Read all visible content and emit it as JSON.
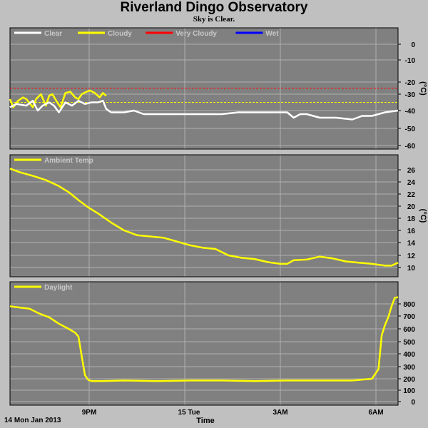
{
  "title": "Riverland Dingo Observatory",
  "subtitle": "Sky is Clear.",
  "date_label": "14 Mon Jan 2013",
  "xaxis_label": "Time",
  "colors": {
    "plot_bg": "#808080",
    "grid": "#b0b0b0",
    "clear": "#ffffff",
    "cloudy": "#ffff00",
    "very_cloudy": "#ff0000",
    "wet": "#0000ff",
    "data_line": "#ffff00"
  },
  "chart_data": [
    {
      "type": "line",
      "panel": "sky",
      "legend": [
        {
          "name": "Clear",
          "color": "#ffffff"
        },
        {
          "name": "Cloudy",
          "color": "#ffff00"
        },
        {
          "name": "Very Cloudy",
          "color": "#ff0000"
        },
        {
          "name": "Wet",
          "color": "#0000ff"
        }
      ],
      "ylabel": "(°C)",
      "ylim": [
        -60,
        0
      ],
      "yticks": [
        0,
        -10,
        -20,
        -30,
        -40,
        -50,
        -60
      ],
      "xlim": [
        18.5,
        30.4
      ],
      "xticks": [
        {
          "x": 21,
          "label": "9PM"
        },
        {
          "x": 24,
          "label": "15 Tue"
        },
        {
          "x": 27,
          "label": "3AM"
        },
        {
          "x": 30,
          "label": "6AM"
        }
      ],
      "thresholds": [
        {
          "name": "Very Cloudy",
          "y": -25,
          "color": "#ff0000"
        },
        {
          "name": "Cloudy",
          "y": -35,
          "color": "#ffff00"
        }
      ],
      "series": [
        {
          "name": "Cloudy",
          "color": "#ffff00",
          "x": [
            18.5,
            18.6,
            18.75,
            18.9,
            19.0,
            19.2,
            19.3,
            19.45,
            19.6,
            19.7,
            19.8,
            19.95,
            20.05,
            20.2,
            20.35,
            20.5,
            20.6,
            20.7,
            20.85,
            20.95,
            21.1,
            21.25,
            21.35,
            21.45
          ],
          "y": [
            -33,
            -38,
            -34,
            -32,
            -33,
            -38,
            -33,
            -30,
            -37,
            -31,
            -30,
            -35,
            -38,
            -29,
            -28,
            -32,
            -33,
            -30,
            -28,
            -27,
            -29,
            -32,
            -29,
            -31
          ]
        },
        {
          "name": "Clear",
          "color": "#ffffff",
          "x": [
            18.5,
            18.7,
            19.0,
            19.2,
            19.35,
            19.5,
            19.7,
            19.85,
            20.0,
            20.2,
            20.4,
            20.6,
            20.8,
            21.0,
            21.2,
            21.35,
            21.45,
            21.6,
            21.8,
            22.0,
            22.3,
            22.6,
            23.0,
            23.5,
            24.0,
            24.5,
            25.0,
            25.5,
            26.0,
            26.5,
            27.0,
            27.2,
            27.4,
            27.6,
            27.8,
            28.0,
            28.5,
            29.0,
            29.3,
            29.6,
            30.0,
            30.4
          ],
          "y": [
            -38,
            -36,
            -37,
            -34,
            -40,
            -37,
            -35,
            -37,
            -41,
            -35,
            -37,
            -34,
            -36,
            -35,
            -35,
            -34,
            -39,
            -41,
            -41,
            -41,
            -40,
            -42,
            -42,
            -42,
            -42,
            -42,
            -42,
            -41,
            -41,
            -41,
            -41,
            -44,
            -42,
            -42,
            -43,
            -44,
            -44,
            -45,
            -43,
            -43,
            -41,
            -40
          ]
        }
      ]
    },
    {
      "type": "line",
      "panel": "ambient",
      "legend": [
        {
          "name": "Ambient Temp",
          "color": "#ffff00"
        }
      ],
      "ylabel": "(°C)",
      "ylim": [
        9,
        27
      ],
      "yticks": [
        26,
        24,
        22,
        20,
        18,
        16,
        14,
        12,
        10
      ],
      "xlim": [
        18.5,
        30.4
      ],
      "series": [
        {
          "name": "Ambient Temp",
          "color": "#ffff00",
          "x": [
            18.5,
            18.8,
            19.2,
            19.6,
            20.0,
            20.3,
            20.6,
            20.9,
            21.2,
            21.6,
            22.0,
            22.4,
            22.8,
            23.2,
            23.6,
            24.0,
            24.4,
            24.8,
            25.2,
            25.6,
            26.0,
            26.4,
            26.8,
            27.0,
            27.2,
            27.6,
            28.0,
            28.4,
            28.8,
            29.2,
            29.6,
            30.0,
            30.2,
            30.4
          ],
          "y": [
            26.2,
            25.6,
            25.0,
            24.3,
            23.3,
            22.3,
            21.0,
            19.8,
            18.8,
            17.3,
            16.0,
            15.2,
            15.0,
            14.8,
            14.2,
            13.6,
            13.2,
            13.0,
            12.0,
            11.6,
            11.4,
            10.9,
            10.6,
            10.6,
            11.2,
            11.3,
            11.8,
            11.5,
            11.0,
            10.8,
            10.6,
            10.3,
            10.3,
            10.8
          ]
        }
      ]
    },
    {
      "type": "line",
      "panel": "daylight",
      "legend": [
        {
          "name": "Daylight",
          "color": "#ffff00"
        }
      ],
      "ylim": [
        0,
        900
      ],
      "yticks": [
        800,
        700,
        600,
        500,
        400,
        300,
        200,
        100,
        0
      ],
      "xlim": [
        18.5,
        30.4
      ],
      "series": [
        {
          "name": "Daylight",
          "color": "#ffff00",
          "x": [
            18.5,
            18.8,
            19.1,
            19.4,
            19.7,
            20.0,
            20.3,
            20.5,
            20.6,
            20.7,
            20.8,
            20.9,
            21.0,
            21.3,
            22.0,
            23.0,
            24.0,
            25.0,
            26.0,
            27.0,
            28.0,
            29.0,
            29.6,
            29.8,
            29.9,
            30.0,
            30.1,
            30.2,
            30.3,
            30.4
          ],
          "y": [
            780,
            770,
            760,
            720,
            690,
            640,
            600,
            570,
            540,
            380,
            230,
            190,
            180,
            180,
            185,
            180,
            185,
            185,
            180,
            185,
            185,
            185,
            200,
            280,
            550,
            630,
            690,
            780,
            850,
            855
          ]
        }
      ]
    }
  ]
}
